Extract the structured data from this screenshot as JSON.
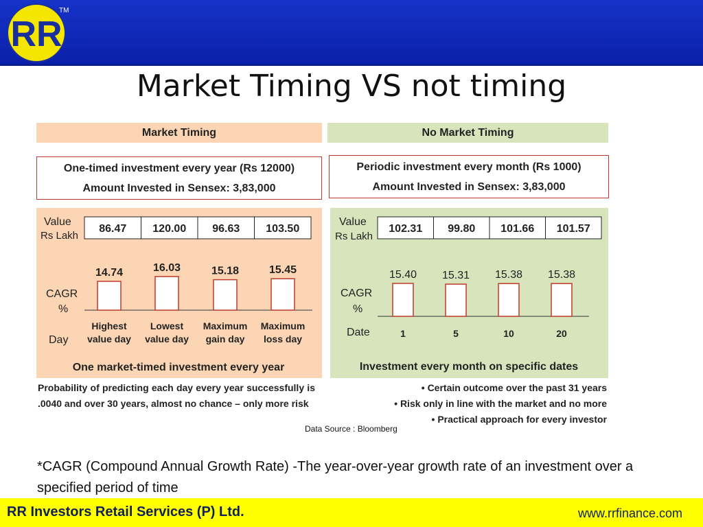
{
  "brand": {
    "logo_text": "RR",
    "trademark": "TM"
  },
  "title": "Market Timing VS not timing",
  "footer": {
    "company": "RR Investors Retail Services (P) Ltd.",
    "website": "www.rrfinance.com"
  },
  "data_source": "Data Source : Bloomberg",
  "cagr_note": "*CAGR (Compound Annual Growth Rate) -The year-over-year growth rate of an investment over a specified period of time",
  "colors": {
    "header_bar": "#1633c8",
    "footer_bar": "#ffff00",
    "market_timing_bg": "#fcd5b4",
    "no_timing_bg": "#d7e4bc",
    "bar_border": "#c0392b"
  },
  "left": {
    "header": "Market Timing",
    "box_line1": "One-timed investment every year (Rs 12000)",
    "box_line2": "Amount Invested in Sensex: 3,83,000",
    "value_label": "Value",
    "unit_label": "Rs Lakh",
    "cagr_label": "CAGR",
    "pct_label": "%",
    "day_label": "Day",
    "caption": "One market-timed investment every year",
    "note": "Probability of predicting each day every year successfully is .0040 and over 30 years, almost no chance – only more risk"
  },
  "right": {
    "header": "No Market Timing",
    "box_line1": "Periodic investment every month (Rs 1000)",
    "box_line2": "Amount Invested in Sensex: 3,83,000",
    "value_label": "Value",
    "unit_label": "Rs Lakh",
    "cagr_label": "CAGR",
    "pct_label": "%",
    "date_label": "Date",
    "caption": "Investment every month on specific dates",
    "bullets": [
      "Certain outcome over the past 31 years",
      "Risk only in line with the market and no more",
      "Practical approach for every investor"
    ]
  },
  "chart_data": [
    {
      "type": "bar",
      "title": "One market-timed investment every year",
      "categories": [
        "Highest value day",
        "Lowest value day",
        "Maximum gain day",
        "Maximum loss day"
      ],
      "values": [
        14.74,
        16.03,
        15.18,
        15.45
      ],
      "value_labels": [
        "14.74",
        "16.03",
        "15.18",
        "15.45"
      ],
      "portfolio_values": [
        "86.47",
        "120.00",
        "96.63",
        "103.50"
      ],
      "category_lines": [
        [
          "Highest",
          "value day"
        ],
        [
          "Lowest",
          "value day"
        ],
        [
          "Maximum",
          "gain day"
        ],
        [
          "Maximum",
          "loss day"
        ]
      ],
      "ylabel": "CAGR %",
      "xlabel": "Day"
    },
    {
      "type": "bar",
      "title": "Investment every month on specific dates",
      "categories": [
        "1",
        "5",
        "10",
        "20"
      ],
      "values": [
        15.4,
        15.31,
        15.38,
        15.38
      ],
      "value_labels": [
        "15.40",
        "15.31",
        "15.38",
        "15.38"
      ],
      "portfolio_values": [
        "102.31",
        "99.80",
        "101.66",
        "101.57"
      ],
      "ylabel": "CAGR %",
      "xlabel": "Date"
    }
  ]
}
